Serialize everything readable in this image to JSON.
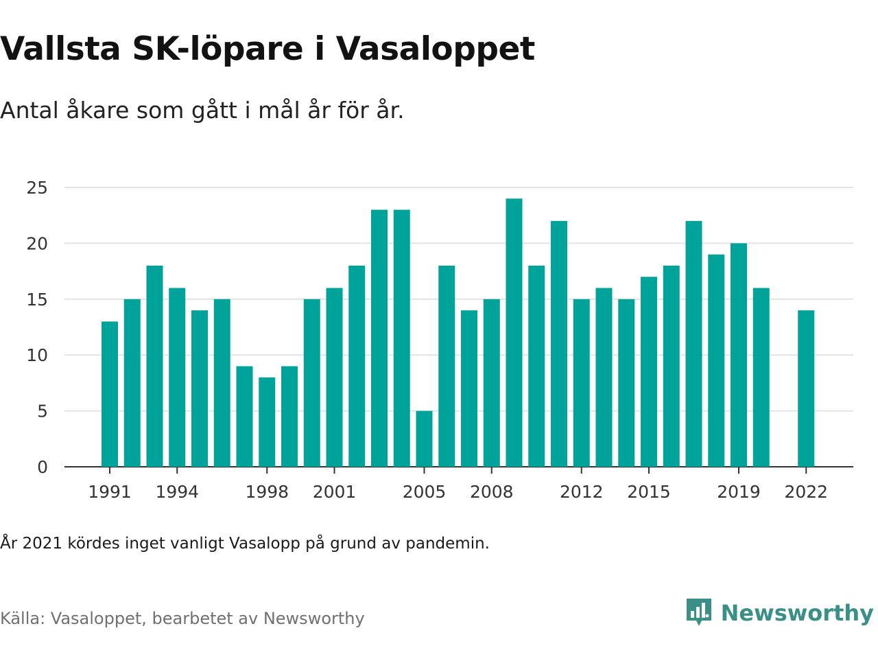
{
  "title": "Vallsta SK-löpare i Vasaloppet",
  "subtitle": "Antal åkare som gått i mål år för år.",
  "note": "År 2021 kördes inget vanligt Vasalopp på grund av pandemin.",
  "source": "Källa: Vasaloppet, bearbetet av Newsworthy",
  "brand": {
    "name": "Newsworthy",
    "color": "#3a8f86",
    "icon": "newsworthy-logo-icon"
  },
  "colors": {
    "bar": "#00a39a",
    "grid": "#e3e3e3",
    "axis": "#333333"
  },
  "chart_data": {
    "type": "bar",
    "categories": [
      "1991",
      "1992",
      "1993",
      "1994",
      "1995",
      "1996",
      "1997",
      "1998",
      "1999",
      "2000",
      "2001",
      "2002",
      "2003",
      "2004",
      "2005",
      "2006",
      "2007",
      "2008",
      "2009",
      "2010",
      "2011",
      "2012",
      "2013",
      "2014",
      "2015",
      "2016",
      "2017",
      "2018",
      "2019",
      "2020",
      "2021",
      "2022"
    ],
    "values": [
      13,
      15,
      18,
      16,
      14,
      15,
      9,
      8,
      9,
      15,
      16,
      18,
      23,
      23,
      5,
      18,
      14,
      15,
      24,
      18,
      22,
      15,
      16,
      15,
      17,
      18,
      22,
      19,
      20,
      16,
      null,
      14
    ],
    "x_tick_labels": [
      "1991",
      "1994",
      "1998",
      "2001",
      "2005",
      "2008",
      "2012",
      "2015",
      "2019",
      "2022"
    ],
    "y_ticks": [
      0,
      5,
      10,
      15,
      20,
      25
    ],
    "ylim": [
      0,
      25
    ],
    "grid": true,
    "legend": "none"
  }
}
